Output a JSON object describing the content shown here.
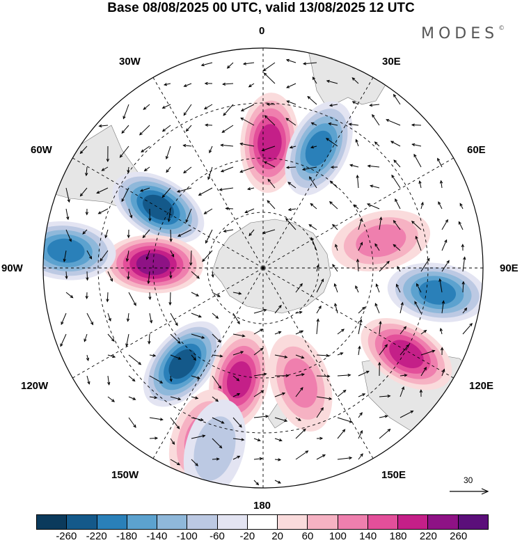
{
  "header": {
    "title": "Base 08/08/2025 00 UTC, valid 13/08/2025 12 UTC",
    "brand": "MODES",
    "brand_mark": "©"
  },
  "map": {
    "projection": "south-polar-stereographic",
    "longitude_labels": {
      "n0": "0",
      "n30e": "30E",
      "n60e": "60E",
      "n90e": "90E",
      "n120e": "120E",
      "n150e": "150E",
      "n180": "180",
      "n150w": "150W",
      "n120w": "120W",
      "n90w": "90W",
      "n60w": "60W",
      "n30w": "30W"
    },
    "anomaly_cells": [
      {
        "bearing_deg": 3,
        "radius_frac": 0.57,
        "value": 170
      },
      {
        "bearing_deg": 25,
        "radius_frac": 0.6,
        "value": -190
      },
      {
        "bearing_deg": -60,
        "radius_frac": 0.55,
        "value": -200
      },
      {
        "bearing_deg": -88,
        "radius_frac": 0.5,
        "value": 230
      },
      {
        "bearing_deg": -85,
        "radius_frac": 0.9,
        "value": -180
      },
      {
        "bearing_deg": 98,
        "radius_frac": 0.8,
        "value": -180
      },
      {
        "bearing_deg": 77,
        "radius_frac": 0.55,
        "value": 110
      },
      {
        "bearing_deg": 121,
        "radius_frac": 0.76,
        "value": 160
      },
      {
        "bearing_deg": -140,
        "radius_frac": 0.57,
        "value": -210
      },
      {
        "bearing_deg": -168,
        "radius_frac": 0.52,
        "value": 160
      },
      {
        "bearing_deg": 162,
        "radius_frac": 0.55,
        "value": 100
      },
      {
        "bearing_deg": -160,
        "radius_frac": 0.82,
        "value": 90
      },
      {
        "bearing_deg": -165,
        "radius_frac": 0.85,
        "value": -70
      }
    ],
    "colors": {
      "land": "#e6e6e6",
      "grid": "#000000"
    }
  },
  "reference_vector": {
    "value": "30",
    "unit_label": "30"
  },
  "colorbar": {
    "ticks": [
      "-260",
      "-220",
      "-180",
      "-140",
      "-100",
      "-60",
      "-20",
      "20",
      "60",
      "100",
      "140",
      "180",
      "220",
      "260"
    ],
    "colors": [
      "#0b3a5c",
      "#14598a",
      "#2a80b9",
      "#5ca2cf",
      "#8fb8da",
      "#bcc9e3",
      "#e3e4f2",
      "#ffffff",
      "#fadbdc",
      "#f6b2c3",
      "#ef7fae",
      "#e34f9a",
      "#c41f88",
      "#8e1285",
      "#5b0f7a"
    ]
  }
}
